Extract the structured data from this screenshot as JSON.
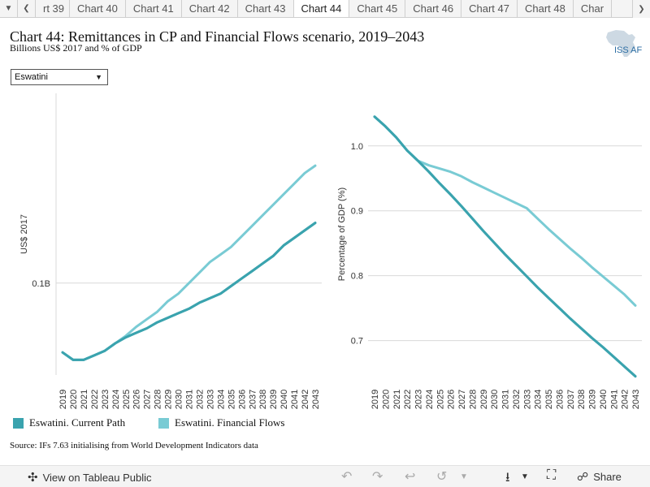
{
  "tabs": {
    "items": [
      "rt 39",
      "Chart 40",
      "Chart 41",
      "Chart 42",
      "Chart 43",
      "Chart 44",
      "Chart 45",
      "Chart 46",
      "Chart 47",
      "Chart 48",
      "Char"
    ],
    "active_index": 5
  },
  "header": {
    "title": "Chart 44: Remittances in CP and Financial Flows scenario, 2019–2043",
    "subtitle": "Billions US$ 2017 and % of GDP",
    "logo_text": "ISS AF"
  },
  "dropdown": {
    "selected": "Eswatini"
  },
  "colors": {
    "current_path": "#3aa3ae",
    "financial_flows": "#79cbd4"
  },
  "chart_data": [
    {
      "type": "line",
      "title": "",
      "ylabel": "US$ 2017",
      "y_ticks": [
        {
          "value": 0.1,
          "label": "0.1B"
        }
      ],
      "ylim": [
        0.039,
        0.226
      ],
      "x": [
        "2019",
        "2020",
        "2021",
        "2022",
        "2023",
        "2024",
        "2025",
        "2026",
        "2027",
        "2028",
        "2029",
        "2030",
        "2031",
        "2032",
        "2033",
        "2034",
        "2035",
        "2036",
        "2037",
        "2038",
        "2039",
        "2040",
        "2041",
        "2042",
        "2043"
      ],
      "series": [
        {
          "name": "Eswatini. Current Path",
          "values": [
            0.054,
            0.049,
            0.049,
            0.052,
            0.055,
            0.06,
            0.064,
            0.067,
            0.07,
            0.074,
            0.077,
            0.08,
            0.083,
            0.087,
            0.09,
            0.093,
            0.098,
            0.103,
            0.108,
            0.113,
            0.118,
            0.125,
            0.13,
            0.135,
            0.14
          ]
        },
        {
          "name": "Eswatini. Financial Flows",
          "values": [
            0.054,
            0.049,
            0.049,
            0.052,
            0.055,
            0.06,
            0.065,
            0.071,
            0.076,
            0.081,
            0.088,
            0.093,
            0.1,
            0.107,
            0.114,
            0.119,
            0.124,
            0.131,
            0.138,
            0.145,
            0.152,
            0.159,
            0.166,
            0.173,
            0.178
          ]
        }
      ]
    },
    {
      "type": "line",
      "title": "",
      "ylabel": "Percentage of GDP (%)",
      "y_ticks": [
        {
          "value": 0.7,
          "label": "0.7"
        },
        {
          "value": 0.8,
          "label": "0.8"
        },
        {
          "value": 0.9,
          "label": "0.9"
        },
        {
          "value": 1.0,
          "label": "1.0"
        }
      ],
      "ylim": [
        0.647,
        1.081
      ],
      "x": [
        "2019",
        "2020",
        "2021",
        "2022",
        "2023",
        "2024",
        "2025",
        "2026",
        "2027",
        "2028",
        "2029",
        "2030",
        "2031",
        "2032",
        "2033",
        "2034",
        "2035",
        "2036",
        "2037",
        "2038",
        "2039",
        "2040",
        "2041",
        "2042",
        "2043"
      ],
      "series": [
        {
          "name": "Eswatini. Current Path",
          "values": [
            1.045,
            1.03,
            1.013,
            0.993,
            0.977,
            0.96,
            0.942,
            0.925,
            0.907,
            0.888,
            0.869,
            0.851,
            0.833,
            0.816,
            0.799,
            0.782,
            0.766,
            0.75,
            0.734,
            0.719,
            0.704,
            0.69,
            0.675,
            0.66,
            0.645
          ]
        },
        {
          "name": "Eswatini. Financial Flows",
          "values": [
            1.045,
            1.03,
            1.013,
            0.993,
            0.977,
            0.97,
            0.965,
            0.96,
            0.953,
            0.944,
            0.936,
            0.928,
            0.92,
            0.912,
            0.904,
            0.888,
            0.872,
            0.857,
            0.842,
            0.828,
            0.813,
            0.799,
            0.785,
            0.771,
            0.754
          ]
        }
      ]
    }
  ],
  "legend": {
    "items": [
      {
        "label": "Eswatini. Current Path",
        "color": "#3aa3ae"
      },
      {
        "label": "Eswatini. Financial Flows",
        "color": "#79cbd4"
      }
    ]
  },
  "source": "Source: IFs 7.63 initialising from World Development Indicators data",
  "footer": {
    "view_label": "View on Tableau Public",
    "share_label": "Share"
  }
}
